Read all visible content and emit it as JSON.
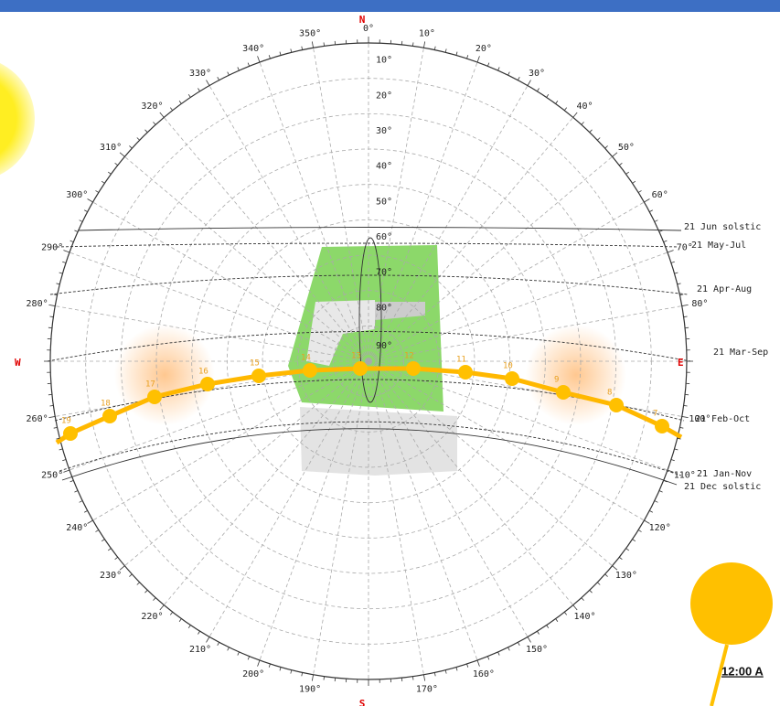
{
  "compass": {
    "north": "N",
    "east": "E",
    "south": "S",
    "west": "W"
  },
  "azimuth_labels": [
    "0°",
    "10°",
    "20°",
    "30°",
    "40°",
    "50°",
    "60°",
    "70°",
    "80°",
    null,
    "100°",
    "110°",
    "120°",
    "130°",
    "140°",
    "150°",
    "160°",
    "170°",
    null,
    "190°",
    "200°",
    "210°",
    "220°",
    "230°",
    "240°",
    "250°",
    "260°",
    null,
    "280°",
    "290°",
    "300°",
    "310°",
    "320°",
    "330°",
    "340°",
    "350°"
  ],
  "altitude_labels": [
    "10°",
    "20°",
    "30°",
    "40°",
    "50°",
    "60°",
    "70°",
    "80°",
    "90°"
  ],
  "date_lines": [
    "21 Jun  solstic",
    "21 May-Jul",
    "21 Apr-Aug",
    "21 Mar-Sep",
    "21 Feb-Oct",
    "21 Jan-Nov",
    "21 Dec  solstic"
  ],
  "hours": [
    "19",
    "18",
    "17",
    "16",
    "15",
    "14",
    "13",
    "12",
    "11",
    "10",
    "9",
    "8",
    "7"
  ],
  "time_label": "12:00 A"
}
